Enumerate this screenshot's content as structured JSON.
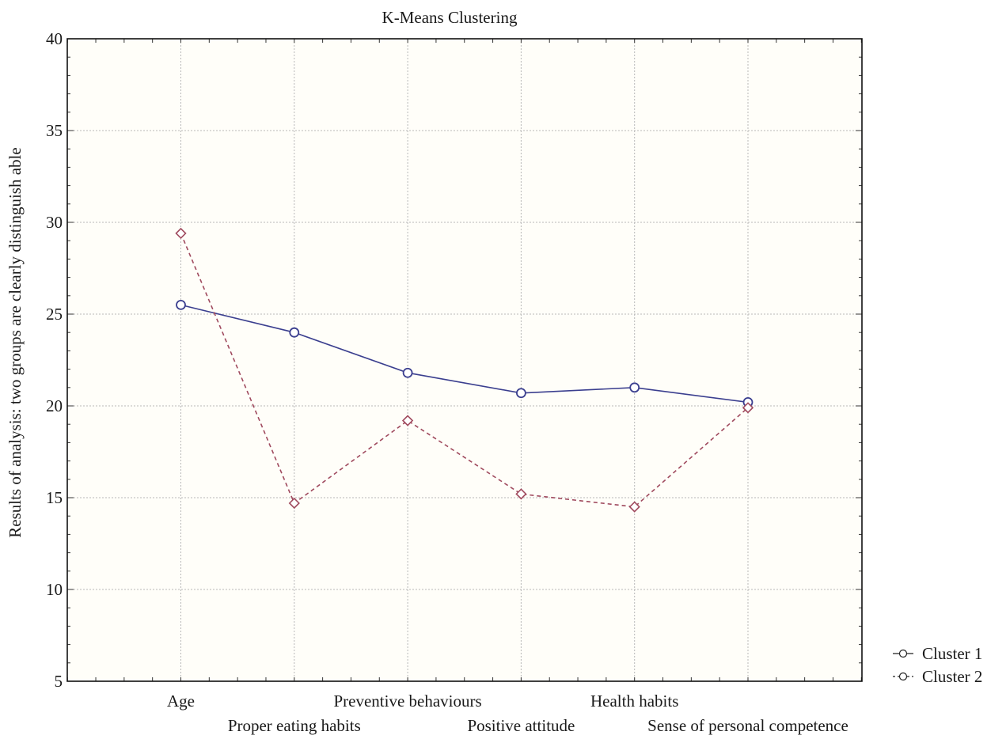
{
  "chart_data": {
    "type": "line",
    "title": "K-Means Clustering",
    "xlabel": "",
    "ylabel": "Results of analysis: two groups are clearly distinguish able",
    "categories": [
      "Age",
      "Proper eating habits",
      "Preventive behaviours",
      "Positive attitude",
      "Health habits",
      "Sense of personal competence"
    ],
    "ylim": [
      5,
      40
    ],
    "yticks": [
      5,
      10,
      15,
      20,
      25,
      30,
      35,
      40
    ],
    "grid": true,
    "legend_position": "bottom-right",
    "series": [
      {
        "name": "Cluster 1",
        "values": [
          25.5,
          24.0,
          21.8,
          20.7,
          21.0,
          20.2
        ],
        "color": "#3b3f8f",
        "line_style": "solid",
        "marker": "circle"
      },
      {
        "name": "Cluster 2",
        "values": [
          29.4,
          14.7,
          19.2,
          15.2,
          14.5,
          19.9
        ],
        "color": "#a04a5e",
        "line_style": "dashed",
        "marker": "diamond"
      }
    ]
  }
}
